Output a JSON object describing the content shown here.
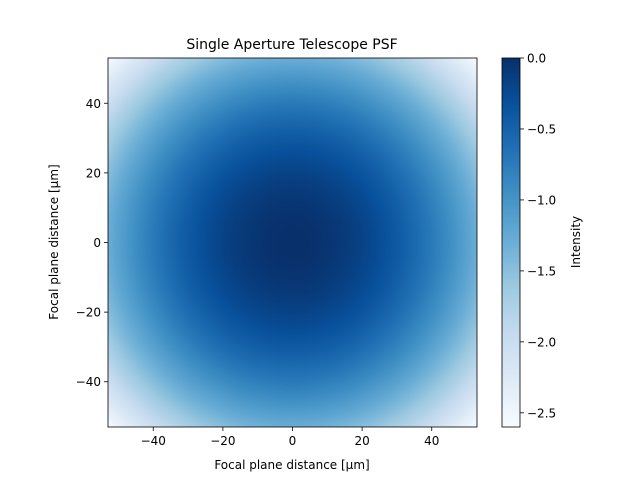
{
  "chart_data": {
    "type": "heatmap",
    "title": "Single Aperture Telescope PSF",
    "xlabel": "Focal plane distance [μm]",
    "ylabel": "Focal plane distance [μm]",
    "xlim": [
      -53,
      53
    ],
    "ylim": [
      -53,
      53
    ],
    "x_ticks": [
      -40,
      -20,
      0,
      20,
      40
    ],
    "y_ticks": [
      -40,
      -20,
      0,
      20,
      40
    ],
    "x_tick_labels": [
      "−40",
      "−20",
      "0",
      "20",
      "40"
    ],
    "y_tick_labels": [
      "−40",
      "−20",
      "0",
      "20",
      "40"
    ],
    "colormap": "Blues",
    "grid": false,
    "colorbar": {
      "label": "Intensity",
      "range": [
        -2.6,
        0.0
      ],
      "ticks": [
        0.0,
        -0.5,
        -1.0,
        -1.5,
        -2.0,
        -2.5
      ],
      "tick_labels": [
        "0.0",
        "−0.5",
        "−1.0",
        "−1.5",
        "−2.0",
        "−2.5"
      ]
    },
    "values_description": "log10 intensity, maximum 0.0 at center (0,0), decreasing radially to about −2.6 at the corners (±53, ±53)",
    "center_value": 0.0,
    "corner_value": -2.6
  },
  "colors": {
    "axis": "#000000",
    "background": "#ffffff"
  }
}
